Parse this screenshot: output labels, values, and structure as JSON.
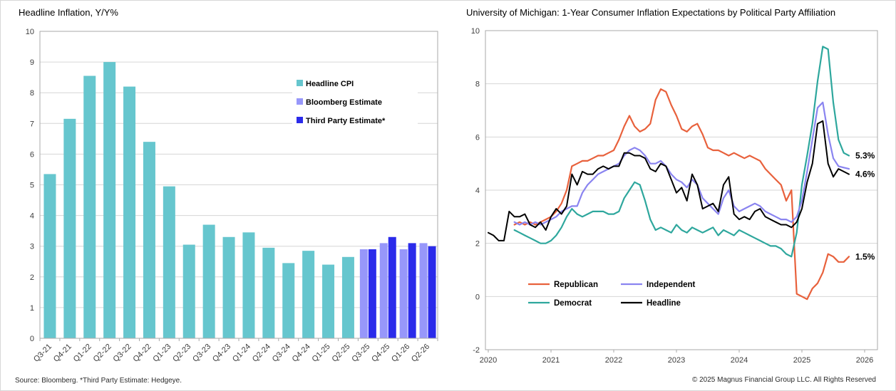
{
  "footers": {
    "source": "Source: Bloomberg. *Third Party Estimate: Hedgeye.",
    "copyright": "© 2025 Magnus Financial Group LLC. All Rights Reserved"
  },
  "styles": {
    "grid_color": "#d6d6d6",
    "axis_border_color": "#aaaaaa",
    "tick_label_color": "#3d3d3d"
  },
  "chart_data": [
    {
      "type": "bar",
      "title": "Headline Inflation, Y/Y%",
      "ylim": [
        0,
        10
      ],
      "ytick_step": 1,
      "grid": true,
      "legend_position": "inside-right",
      "categories": [
        "Q3-21",
        "Q4-21",
        "Q1-22",
        "Q2-22",
        "Q3-22",
        "Q4-22",
        "Q1-23",
        "Q2-23",
        "Q3-23",
        "Q4-23",
        "Q1-24",
        "Q2-24",
        "Q3-24",
        "Q4-24",
        "Q1-25",
        "Q2-25",
        "Q3-25",
        "Q4-25",
        "Q1-26",
        "Q2-26"
      ],
      "series": [
        {
          "name": "Headline CPI",
          "color": "#66c6ce",
          "values": [
            5.35,
            7.15,
            8.55,
            9.0,
            8.2,
            6.4,
            4.95,
            3.05,
            3.7,
            3.3,
            3.45,
            2.95,
            2.45,
            2.85,
            2.4,
            2.65,
            null,
            null,
            null,
            null
          ]
        },
        {
          "name": "Bloomberg Estimate",
          "color": "#9797fa",
          "values": [
            null,
            null,
            null,
            null,
            null,
            null,
            null,
            null,
            null,
            null,
            null,
            null,
            null,
            null,
            null,
            null,
            2.9,
            3.1,
            2.9,
            3.1
          ]
        },
        {
          "name": "Third Party Estimate*",
          "color": "#2b2bea",
          "values": [
            null,
            null,
            null,
            null,
            null,
            null,
            null,
            null,
            null,
            null,
            null,
            null,
            null,
            null,
            null,
            null,
            2.9,
            3.3,
            3.1,
            3.0
          ]
        }
      ]
    },
    {
      "type": "line",
      "title": "University of Michigan: 1-Year Consumer Inflation Expectations by Political Party Affiliation",
      "xlim": [
        2020,
        2026.2
      ],
      "ylim": [
        -2,
        10
      ],
      "ytick_step": 2,
      "xticks": [
        2020,
        2021,
        2022,
        2023,
        2024,
        2025,
        2026
      ],
      "grid": true,
      "legend_position": "inside-bottom",
      "legend_order": [
        "Republican",
        "Independent",
        "Democrat",
        "Headline"
      ],
      "series": [
        {
          "name": "Republican",
          "color": "#e8613c",
          "x_start": 2020.4167,
          "values": [
            2.7,
            2.8,
            2.7,
            2.8,
            2.7,
            2.8,
            2.9,
            3.0,
            3.2,
            3.5,
            4.0,
            4.9,
            5.0,
            5.1,
            5.1,
            5.2,
            5.3,
            5.3,
            5.4,
            5.5,
            5.9,
            6.4,
            6.8,
            6.4,
            6.2,
            6.3,
            6.5,
            7.4,
            7.8,
            7.7,
            7.2,
            6.8,
            6.3,
            6.2,
            6.4,
            6.5,
            6.1,
            5.6,
            5.5,
            5.5,
            5.4,
            5.3,
            5.4,
            5.3,
            5.2,
            5.3,
            5.2,
            5.1,
            4.8,
            4.6,
            4.4,
            4.2,
            3.6,
            4.0,
            0.1,
            0.0,
            -0.1,
            0.3,
            0.5,
            0.9,
            1.6,
            1.5,
            1.3,
            1.3,
            1.5
          ]
        },
        {
          "name": "Democrat",
          "color": "#2ea79d",
          "x_start": 2020.4167,
          "values": [
            2.5,
            2.4,
            2.3,
            2.2,
            2.1,
            2.0,
            2.0,
            2.1,
            2.3,
            2.6,
            3.0,
            3.3,
            3.1,
            3.0,
            3.1,
            3.2,
            3.2,
            3.2,
            3.1,
            3.1,
            3.2,
            3.7,
            4.0,
            4.3,
            4.2,
            3.6,
            2.9,
            2.5,
            2.6,
            2.5,
            2.4,
            2.7,
            2.5,
            2.4,
            2.6,
            2.5,
            2.4,
            2.5,
            2.6,
            2.3,
            2.5,
            2.4,
            2.3,
            2.5,
            2.4,
            2.3,
            2.2,
            2.1,
            2.0,
            1.9,
            1.9,
            1.8,
            1.6,
            1.5,
            2.4,
            4.2,
            5.3,
            6.5,
            8.1,
            9.4,
            9.3,
            7.3,
            5.9,
            5.4,
            5.3
          ]
        },
        {
          "name": "Independent",
          "color": "#8a84f0",
          "x_start": 2020.4167,
          "values": [
            2.8,
            2.7,
            2.8,
            2.7,
            2.8,
            2.7,
            2.8,
            2.9,
            3.0,
            3.2,
            3.3,
            3.4,
            3.4,
            3.9,
            4.2,
            4.4,
            4.6,
            4.7,
            4.8,
            4.9,
            5.0,
            5.3,
            5.5,
            5.6,
            5.5,
            5.3,
            5.0,
            5.0,
            5.1,
            4.9,
            4.6,
            4.4,
            4.3,
            4.1,
            4.4,
            4.2,
            3.7,
            3.5,
            3.3,
            3.1,
            3.7,
            4.0,
            3.4,
            3.2,
            3.3,
            3.4,
            3.5,
            3.4,
            3.2,
            3.1,
            3.0,
            2.9,
            2.9,
            2.8,
            3.0,
            3.6,
            4.7,
            5.9,
            7.1,
            7.3,
            6.1,
            5.2,
            4.9,
            4.85,
            4.8
          ]
        },
        {
          "name": "Headline",
          "color": "#000000",
          "x_start": 2020.0,
          "values": [
            2.4,
            2.3,
            2.1,
            2.1,
            3.2,
            3.0,
            3.0,
            3.1,
            2.7,
            2.6,
            2.8,
            2.5,
            3.0,
            3.3,
            3.1,
            3.4,
            4.6,
            4.2,
            4.7,
            4.6,
            4.6,
            4.8,
            4.9,
            4.8,
            4.9,
            4.9,
            5.4,
            5.4,
            5.3,
            5.3,
            5.2,
            4.8,
            4.7,
            5.0,
            4.9,
            4.4,
            3.9,
            4.1,
            3.6,
            4.6,
            4.2,
            3.3,
            3.4,
            3.5,
            3.2,
            4.2,
            4.5,
            3.1,
            2.9,
            3.0,
            2.9,
            3.2,
            3.3,
            3.0,
            2.9,
            2.8,
            2.7,
            2.7,
            2.6,
            2.8,
            3.3,
            4.3,
            5.0,
            6.5,
            6.6,
            5.0,
            4.5,
            4.8,
            4.7,
            4.6
          ]
        }
      ],
      "annotations": [
        {
          "series": "Democrat",
          "label": "5.3%"
        },
        {
          "series": "Headline",
          "label": "4.6%"
        },
        {
          "series": "Republican",
          "label": "1.5%"
        }
      ]
    }
  ]
}
